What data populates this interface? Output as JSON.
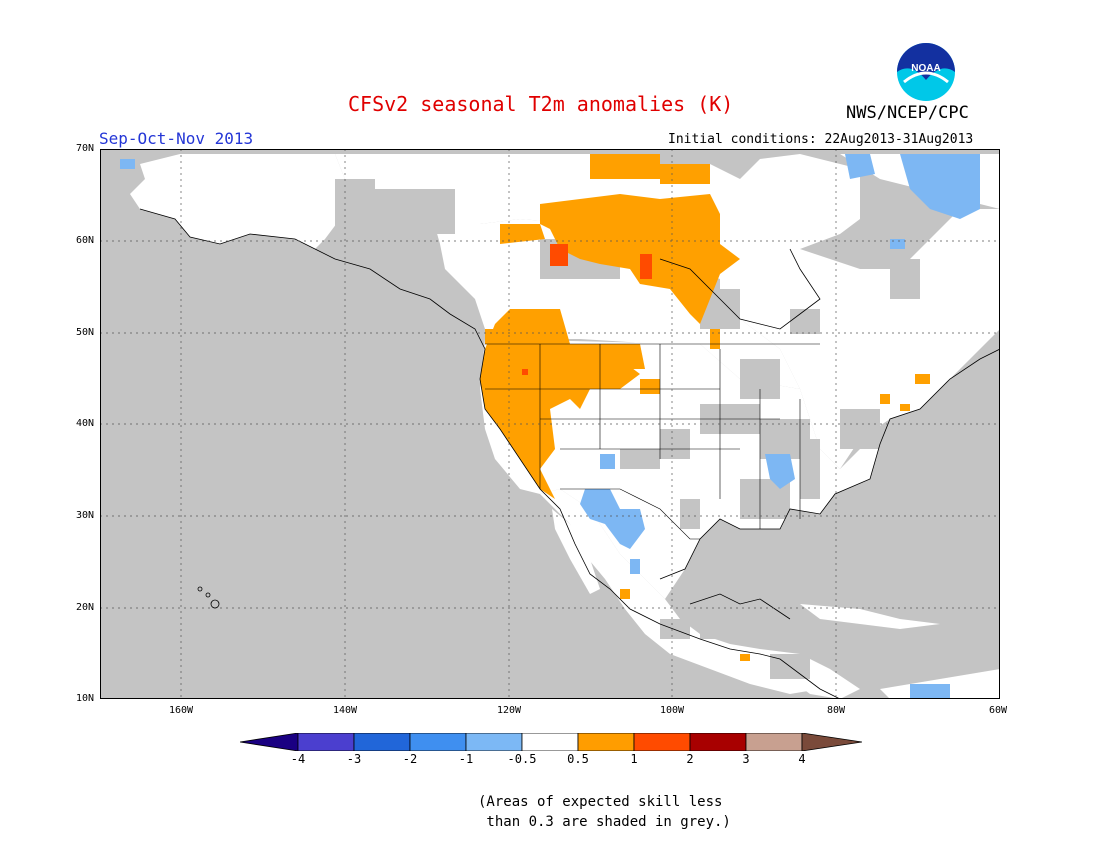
{
  "header": {
    "title": "CFSv2 seasonal T2m anomalies (K)",
    "agency": "NWS/NCEP/CPC",
    "logo_text": "NOAA",
    "season": "Sep-Oct-Nov 2013",
    "initial_conditions": "Initial conditions: 22Aug2013-31Aug2013"
  },
  "axes": {
    "lat_labels": [
      "70N",
      "60N",
      "50N",
      "40N",
      "30N",
      "20N",
      "10N"
    ],
    "lon_labels": [
      "160W",
      "140W",
      "120W",
      "100W",
      "80W",
      "60W"
    ]
  },
  "legend": {
    "ticks": [
      "-4",
      "-3",
      "-2",
      "-1",
      "-0.5",
      "0.5",
      "1",
      "2",
      "3",
      "4"
    ],
    "colors": [
      "#1a0082",
      "#4b3fcf",
      "#2166d9",
      "#3f8ff0",
      "#7cb8f5",
      "#ffffff",
      "#ff9d00",
      "#ff4b00",
      "#a80000",
      "#c8a090",
      "#7a4a3a"
    ]
  },
  "note": {
    "line1": "(Areas of expected skill less",
    "line2": " than 0.3 are shaded in grey.)"
  },
  "colors": {
    "skill_grey": "#c4c4c4",
    "land_white": "#ffffff",
    "warm": "#ffa000",
    "warm_strong": "#ff4b00",
    "cool": "#7db7f3"
  }
}
